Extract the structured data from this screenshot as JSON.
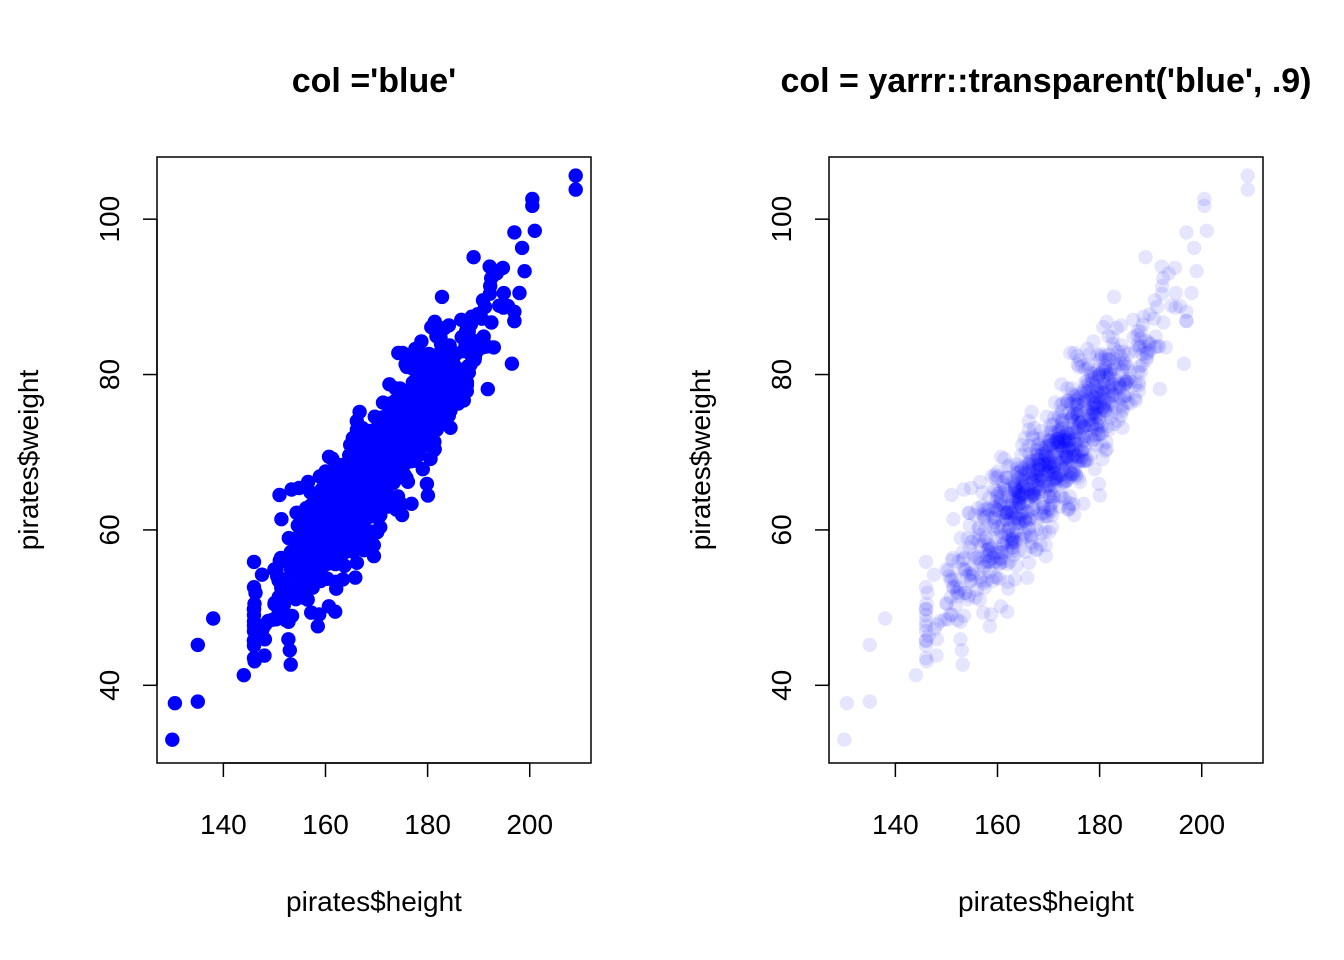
{
  "chart_data": [
    {
      "type": "scatter",
      "title": "col ='blue'",
      "xlabel": "pirates$height",
      "ylabel": "pirates$weight",
      "xlim": [
        127,
        212
      ],
      "ylim": [
        30,
        108
      ],
      "xticks": [
        140,
        160,
        180,
        200
      ],
      "yticks": [
        40,
        60,
        80,
        100
      ],
      "grid": false,
      "legend": "none",
      "point_color": "#0000ff",
      "point_opacity": 1.0,
      "n_points": 1000,
      "trend": {
        "slope": 0.817,
        "intercept": -70.9,
        "residual_sd": 3.8
      },
      "x_distribution": {
        "mean": 170,
        "sd": 10
      },
      "notable_points": [
        {
          "x": 130,
          "y": 33
        },
        {
          "x": 130.5,
          "y": 37.7
        },
        {
          "x": 135,
          "y": 37.9
        },
        {
          "x": 144,
          "y": 41.3
        },
        {
          "x": 135,
          "y": 45.2
        },
        {
          "x": 138,
          "y": 48.6
        },
        {
          "x": 153,
          "y": 44.5
        },
        {
          "x": 196.5,
          "y": 81.4
        },
        {
          "x": 209,
          "y": 105.6
        },
        {
          "x": 209,
          "y": 103.8
        },
        {
          "x": 200.5,
          "y": 102.6
        },
        {
          "x": 200.5,
          "y": 101.7
        },
        {
          "x": 197,
          "y": 98.3
        },
        {
          "x": 201,
          "y": 98.5
        },
        {
          "x": 198.5,
          "y": 96.3
        },
        {
          "x": 189,
          "y": 95.1
        },
        {
          "x": 199,
          "y": 93.3
        },
        {
          "x": 198,
          "y": 90.5
        },
        {
          "x": 158.5,
          "y": 47.6
        },
        {
          "x": 151,
          "y": 64.5
        }
      ]
    },
    {
      "type": "scatter",
      "title": "col = yarrr::transparent('blue', .9)",
      "xlabel": "pirates$height",
      "ylabel": "pirates$weight",
      "xlim": [
        127,
        212
      ],
      "ylim": [
        30,
        108
      ],
      "xticks": [
        140,
        160,
        180,
        200
      ],
      "yticks": [
        40,
        60,
        80,
        100
      ],
      "grid": false,
      "legend": "none",
      "point_color": "#0000ff",
      "point_opacity": 0.1,
      "n_points": 1000,
      "trend": {
        "slope": 0.817,
        "intercept": -70.9,
        "residual_sd": 3.8
      },
      "x_distribution": {
        "mean": 170,
        "sd": 10
      },
      "notable_points": [
        {
          "x": 130,
          "y": 33
        },
        {
          "x": 130.5,
          "y": 37.7
        },
        {
          "x": 135,
          "y": 37.9
        },
        {
          "x": 144,
          "y": 41.3
        },
        {
          "x": 135,
          "y": 45.2
        },
        {
          "x": 138,
          "y": 48.6
        },
        {
          "x": 153,
          "y": 44.5
        },
        {
          "x": 196.5,
          "y": 81.4
        },
        {
          "x": 209,
          "y": 105.6
        },
        {
          "x": 209,
          "y": 103.8
        },
        {
          "x": 200.5,
          "y": 102.6
        },
        {
          "x": 200.5,
          "y": 101.7
        },
        {
          "x": 197,
          "y": 98.3
        },
        {
          "x": 201,
          "y": 98.5
        },
        {
          "x": 198.5,
          "y": 96.3
        },
        {
          "x": 189,
          "y": 95.1
        },
        {
          "x": 199,
          "y": 93.3
        },
        {
          "x": 198,
          "y": 90.5
        },
        {
          "x": 158.5,
          "y": 47.6
        },
        {
          "x": 151,
          "y": 64.5
        }
      ]
    }
  ]
}
